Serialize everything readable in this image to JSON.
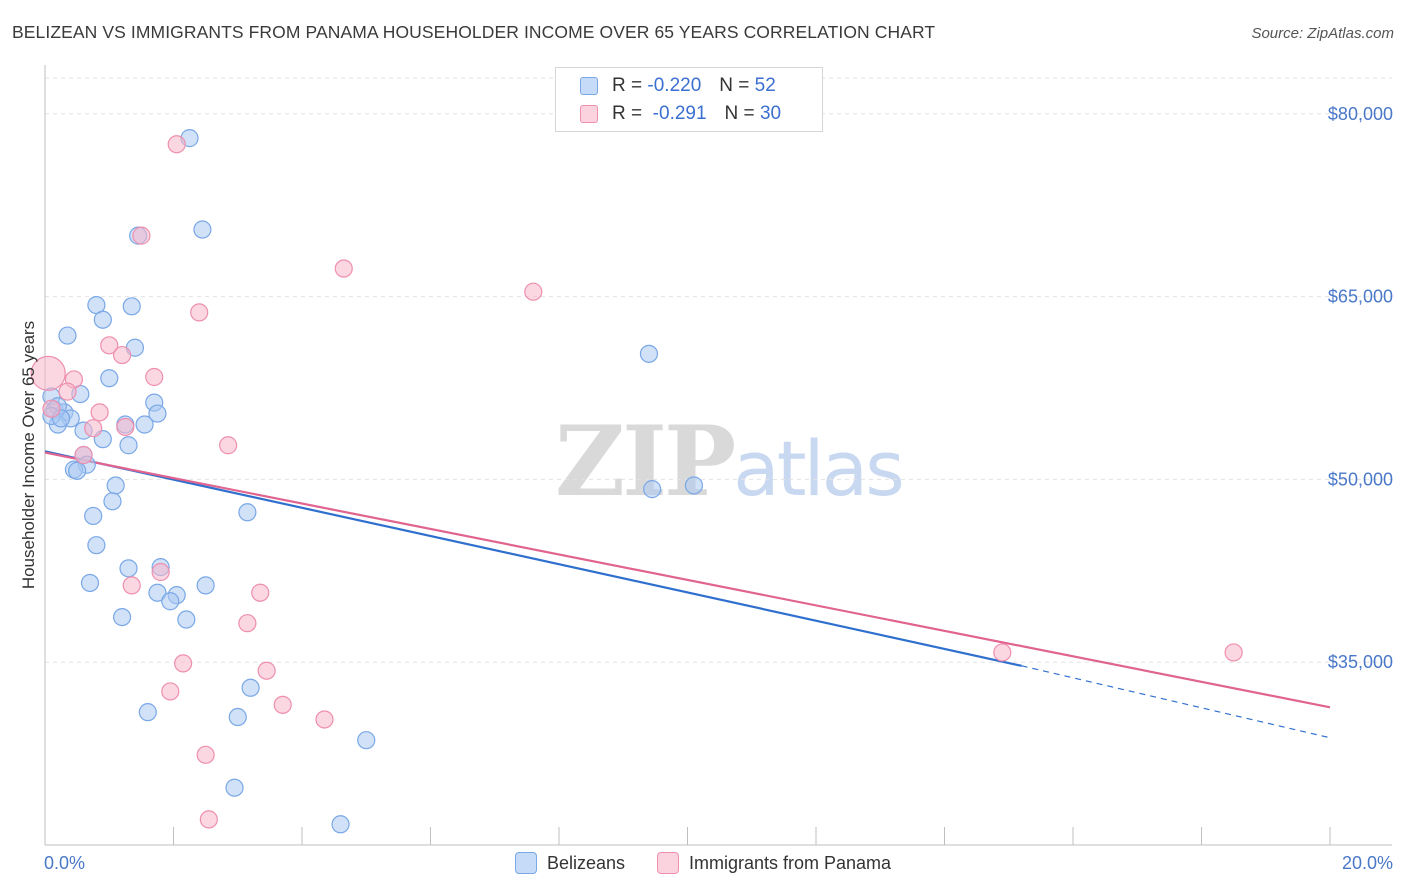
{
  "header": {
    "title": "BELIZEAN VS IMMIGRANTS FROM PANAMA HOUSEHOLDER INCOME OVER 65 YEARS CORRELATION CHART",
    "source": "Source: ZipAtlas.com"
  },
  "watermark": {
    "zip": "ZIP",
    "atlas": "atlas"
  },
  "legend": {
    "rows": [
      {
        "r_label": "R =",
        "r_value": "-0.220",
        "n_label": "N =",
        "n_value": "52",
        "color": "#a9c8f2"
      },
      {
        "r_label": "R =",
        "r_value": "-0.291",
        "n_label": "N =",
        "n_value": "30",
        "color": "#f7b6c9"
      }
    ]
  },
  "bottom_legend": {
    "items": [
      {
        "label": "Belizeans",
        "color": "#a9c8f2"
      },
      {
        "label": "Immigrants from Panama",
        "color": "#f7b6c9"
      }
    ]
  },
  "chart_data": {
    "type": "scatter",
    "title": "BELIZEAN VS IMMIGRANTS FROM PANAMA HOUSEHOLDER INCOME OVER 65 YEARS CORRELATION CHART",
    "xlabel": "",
    "ylabel": "Householder Income Over 65 years",
    "xlim": [
      0,
      20
    ],
    "ylim": [
      20000,
      84000
    ],
    "x_tick_labels": [
      "0.0%",
      "20.0%"
    ],
    "y_ticks": [
      35000,
      50000,
      65000,
      80000
    ],
    "y_tick_labels": [
      "$35,000",
      "$50,000",
      "$65,000",
      "$80,000"
    ],
    "grid": true,
    "series": [
      {
        "name": "Belizeans",
        "color": "#7aa8e6",
        "fill": "#a9c8f2",
        "trend": {
          "x": [
            0,
            15.2
          ],
          "y": [
            52300,
            34700
          ],
          "dashed_to_x": 20,
          "dashed_to_y": 28800,
          "color": "#2f6fce"
        },
        "points": [
          [
            2.25,
            78000
          ],
          [
            2.45,
            70500
          ],
          [
            1.45,
            70000
          ],
          [
            0.8,
            64300
          ],
          [
            1.35,
            64200
          ],
          [
            0.9,
            63100
          ],
          [
            0.35,
            61800
          ],
          [
            1.4,
            60800
          ],
          [
            0.55,
            57000
          ],
          [
            1.0,
            58300
          ],
          [
            0.1,
            56800
          ],
          [
            1.7,
            56300
          ],
          [
            0.15,
            55700
          ],
          [
            0.3,
            55500
          ],
          [
            1.75,
            55400
          ],
          [
            0.4,
            55000
          ],
          [
            0.2,
            54500
          ],
          [
            0.6,
            54000
          ],
          [
            1.25,
            54500
          ],
          [
            1.55,
            54500
          ],
          [
            0.9,
            53300
          ],
          [
            1.3,
            52800
          ],
          [
            0.6,
            52000
          ],
          [
            0.65,
            51200
          ],
          [
            0.45,
            50800
          ],
          [
            0.5,
            50700
          ],
          [
            1.1,
            49500
          ],
          [
            1.05,
            48200
          ],
          [
            3.15,
            47300
          ],
          [
            0.75,
            47000
          ],
          [
            0.8,
            44600
          ],
          [
            1.3,
            42700
          ],
          [
            1.8,
            42800
          ],
          [
            0.7,
            41500
          ],
          [
            2.5,
            41300
          ],
          [
            1.75,
            40700
          ],
          [
            2.05,
            40500
          ],
          [
            1.95,
            40000
          ],
          [
            1.2,
            38700
          ],
          [
            2.2,
            38500
          ],
          [
            3.2,
            32900
          ],
          [
            1.6,
            30900
          ],
          [
            3.0,
            30500
          ],
          [
            5.0,
            28600
          ],
          [
            2.95,
            24700
          ],
          [
            4.6,
            21700
          ],
          [
            9.4,
            60300
          ],
          [
            9.45,
            49200
          ],
          [
            10.1,
            49500
          ],
          [
            0.2,
            56000
          ],
          [
            0.1,
            55200
          ],
          [
            0.25,
            55000
          ]
        ]
      },
      {
        "name": "Immigrants from Panama",
        "color": "#ee8fae",
        "fill": "#f7b6c9",
        "trend": {
          "x": [
            0,
            20
          ],
          "y": [
            52200,
            31300
          ],
          "color": "#e0648f"
        },
        "points": [
          [
            0.05,
            58700
          ],
          [
            2.05,
            77500
          ],
          [
            1.5,
            70000
          ],
          [
            4.65,
            67300
          ],
          [
            7.6,
            65400
          ],
          [
            2.4,
            63700
          ],
          [
            1.0,
            61000
          ],
          [
            1.2,
            60200
          ],
          [
            1.7,
            58400
          ],
          [
            0.45,
            58200
          ],
          [
            0.35,
            57200
          ],
          [
            0.85,
            55500
          ],
          [
            0.75,
            54200
          ],
          [
            1.25,
            54300
          ],
          [
            2.85,
            52800
          ],
          [
            0.6,
            52000
          ],
          [
            1.35,
            41300
          ],
          [
            1.8,
            42400
          ],
          [
            3.35,
            40700
          ],
          [
            3.15,
            38200
          ],
          [
            2.15,
            34900
          ],
          [
            3.45,
            34300
          ],
          [
            1.95,
            32600
          ],
          [
            3.7,
            31500
          ],
          [
            4.35,
            30300
          ],
          [
            2.5,
            27400
          ],
          [
            2.55,
            22100
          ],
          [
            14.9,
            35800
          ],
          [
            18.5,
            35800
          ],
          [
            0.1,
            55800
          ]
        ]
      }
    ]
  },
  "axis": {
    "ylabel": "Householder Income Over 65 years",
    "x_left_label": "0.0%",
    "x_right_label": "20.0%"
  }
}
